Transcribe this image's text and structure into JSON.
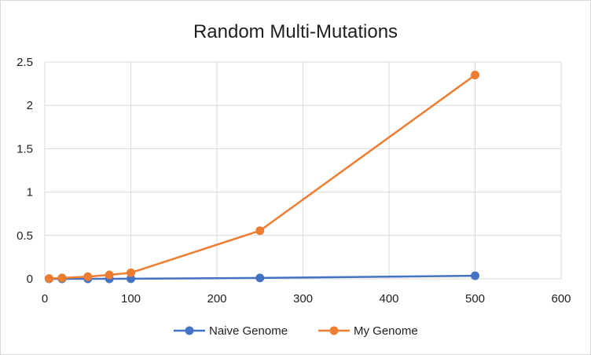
{
  "chart_data": {
    "type": "line",
    "title": "Random Multi-Mutations",
    "xlabel": "",
    "ylabel": "",
    "xlim": [
      0,
      600
    ],
    "ylim": [
      0,
      2.5
    ],
    "x_ticks": [
      "0",
      "100",
      "200",
      "300",
      "400",
      "500",
      "600"
    ],
    "y_ticks": [
      "0",
      "0.5",
      "1",
      "1.5",
      "2",
      "2.5"
    ],
    "grid": true,
    "legend_position": "bottom",
    "series": [
      {
        "name": "Naive Genome",
        "color": "#4472c4",
        "x": [
          5,
          20,
          50,
          75,
          100,
          250,
          500
        ],
        "y": [
          0.0,
          0.0,
          0.0,
          0.0,
          0.001,
          0.01,
          0.035
        ]
      },
      {
        "name": "My Genome",
        "color": "#ed7d31",
        "x": [
          5,
          20,
          50,
          75,
          100,
          250,
          500
        ],
        "y": [
          0.003,
          0.01,
          0.025,
          0.045,
          0.07,
          0.555,
          2.35
        ]
      }
    ]
  }
}
